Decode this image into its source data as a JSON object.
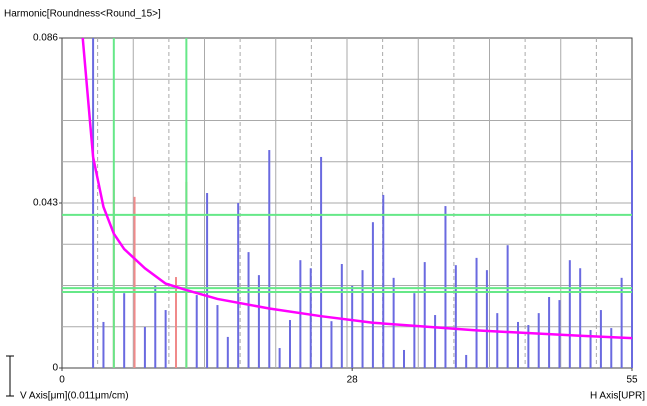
{
  "chart_data": {
    "type": "bar",
    "title": "Harmonic[Roundness<Round_15>]",
    "y_label": "V Axis[μm](0.011μm/cm)",
    "x_label": "H Axis[UPR]",
    "xlim": [
      0,
      55
    ],
    "ylim": [
      0,
      0.086
    ],
    "xticks": [
      0,
      28,
      55
    ],
    "yticks": [
      0,
      0.043,
      0.086
    ],
    "grid": true,
    "x_grid": [
      6.875,
      13.75,
      20.625,
      27.5,
      34.375,
      41.25,
      48.125
    ],
    "x_grid_dashed": [
      3.4375,
      10.3125,
      17.1875,
      24.0625,
      30.9375,
      37.8125,
      44.6875,
      51.5625
    ],
    "y_grid": [
      0.01075,
      0.0215,
      0.03225,
      0.043,
      0.05375,
      0.0645,
      0.07525
    ],
    "series": [
      {
        "color": "#6a6ae0",
        "x": [
          3,
          4,
          6,
          8,
          9,
          10,
          13,
          14,
          15,
          16,
          17,
          18,
          19,
          20,
          21,
          22,
          23,
          24,
          25,
          26,
          27,
          28,
          29,
          30,
          31,
          32,
          33,
          34,
          35,
          36,
          37,
          38,
          39,
          40,
          41,
          42,
          43,
          44,
          45,
          46,
          47,
          48,
          49,
          50,
          51,
          52,
          53,
          54,
          55
        ],
        "values": [
          0.086,
          0.012,
          0.0195,
          0.0107,
          0.0214,
          0.0151,
          0.019,
          0.0456,
          0.0164,
          0.0081,
          0.043,
          0.0302,
          0.0242,
          0.0568,
          0.0052,
          0.0125,
          0.0281,
          0.026,
          0.055,
          0.0122,
          0.0271,
          0.0214,
          0.0255,
          0.038,
          0.0451,
          0.0235,
          0.0047,
          0.0195,
          0.0276,
          0.0138,
          0.0422,
          0.0268,
          0.0034,
          0.0287,
          0.0255,
          0.0143,
          0.032,
          0.012,
          0.0112,
          0.0143,
          0.0185,
          0.0177,
          0.0281,
          0.026,
          0.0099,
          0.0151,
          0.0104,
          0.0235,
          0.0568
        ]
      },
      {
        "color": "#f08a8a",
        "x": [
          5,
          7,
          11,
          12
        ],
        "values": [
          0.049,
          0.0446,
          0.0237,
          0.0485
        ]
      },
      {
        "color": "#66e888",
        "x": [
          5,
          12
        ],
        "values": [
          0.086,
          0.086
        ]
      }
    ],
    "h_lines": {
      "color": "#66e888",
      "values": [
        0.0399,
        0.0208,
        0.0198
      ]
    },
    "curve": {
      "color": "#ff00ff",
      "x": [
        2,
        3,
        4,
        5,
        6,
        8,
        10,
        12,
        15,
        20,
        25,
        30,
        40,
        50,
        55
      ],
      "values": [
        0.086,
        0.055,
        0.042,
        0.035,
        0.031,
        0.026,
        0.022,
        0.0203,
        0.018,
        0.0155,
        0.0135,
        0.0118,
        0.0098,
        0.0084,
        0.0078
      ]
    }
  }
}
